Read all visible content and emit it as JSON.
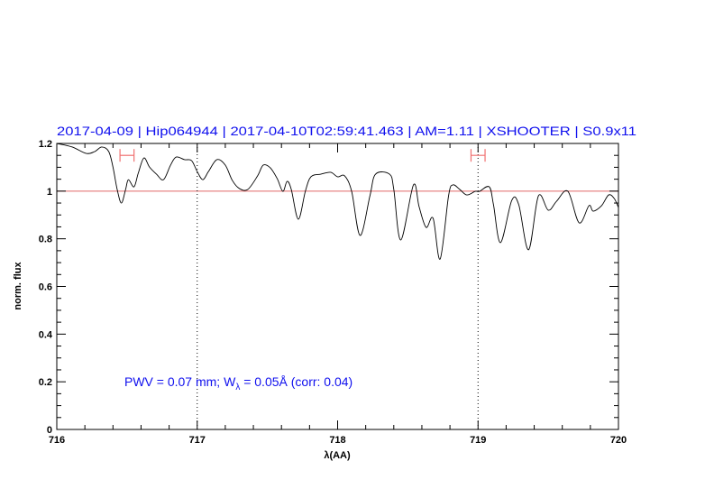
{
  "chart_data": {
    "type": "line",
    "title": "2017-04-09 | Hip064944 | 2017-04-10T02:59:41.463 | AM=1.11 | XSHOOTER | S0.9x11",
    "xlabel": "λ(AA)",
    "ylabel": "norm. flux",
    "xlim": [
      716,
      720
    ],
    "ylim": [
      0,
      1.2
    ],
    "xticks": [
      "716",
      "717",
      "718",
      "719",
      "720"
    ],
    "yticks": [
      "0",
      "0.2",
      "0.4",
      "0.6",
      "0.8",
      "1",
      "1.2"
    ],
    "grid": false,
    "reference_line": {
      "y": 1,
      "color": "#e06868"
    },
    "marker_lines_x": [
      717,
      719
    ],
    "error_bars": [
      {
        "x_from": 716.45,
        "x_to": 716.55,
        "y": 1.15
      },
      {
        "x_from": 718.95,
        "x_to": 719.05,
        "y": 1.15
      }
    ],
    "error_bar_color": "#f07070",
    "line_color": "#000000",
    "text_color": "#1010ee",
    "annotation": {
      "pre": "PWV = 0.07 mm; W",
      "sub": "λ",
      "post": " = 0.05Å (corr: 0.04)"
    },
    "x": [
      716.0,
      716.11,
      716.21,
      716.27,
      716.32,
      716.37,
      716.4,
      716.43,
      716.46,
      716.49,
      716.51,
      716.55,
      716.58,
      716.62,
      716.66,
      716.71,
      716.76,
      716.81,
      716.85,
      716.91,
      716.96,
      717.0,
      717.04,
      717.08,
      717.14,
      717.2,
      717.25,
      717.3,
      717.36,
      717.43,
      717.47,
      717.52,
      717.57,
      717.61,
      717.64,
      717.67,
      717.72,
      717.77,
      717.81,
      717.88,
      717.95,
      718.0,
      718.05,
      718.1,
      718.16,
      718.23,
      718.27,
      718.37,
      718.4,
      718.45,
      718.54,
      718.58,
      718.63,
      718.68,
      718.73,
      718.79,
      718.82,
      718.87,
      718.92,
      718.98,
      719.01,
      719.08,
      719.11,
      719.16,
      719.24,
      719.29,
      719.36,
      719.43,
      719.5,
      719.56,
      719.64,
      719.72,
      719.79,
      719.82,
      719.88,
      719.93,
      719.97,
      720.0
    ],
    "y": [
      1.2,
      1.185,
      1.158,
      1.166,
      1.185,
      1.166,
      1.101,
      1.007,
      0.95,
      1.007,
      1.048,
      1.018,
      1.075,
      1.139,
      1.101,
      1.071,
      1.048,
      1.109,
      1.143,
      1.132,
      1.128,
      1.082,
      1.048,
      1.082,
      1.132,
      1.109,
      1.045,
      1.011,
      1.007,
      1.064,
      1.109,
      1.098,
      1.052,
      0.999,
      1.041,
      1.007,
      0.882,
      0.999,
      1.06,
      1.071,
      1.079,
      1.06,
      1.064,
      0.999,
      0.814,
      0.98,
      1.071,
      1.071,
      1.007,
      0.795,
      1.026,
      0.935,
      0.848,
      0.886,
      0.715,
      0.98,
      1.026,
      1.007,
      0.984,
      0.999,
      0.999,
      1.018,
      0.943,
      0.784,
      0.961,
      0.943,
      0.754,
      0.98,
      0.92,
      0.958,
      0.999,
      0.867,
      0.939,
      0.916,
      0.939,
      0.984,
      0.969,
      0.931
    ]
  }
}
